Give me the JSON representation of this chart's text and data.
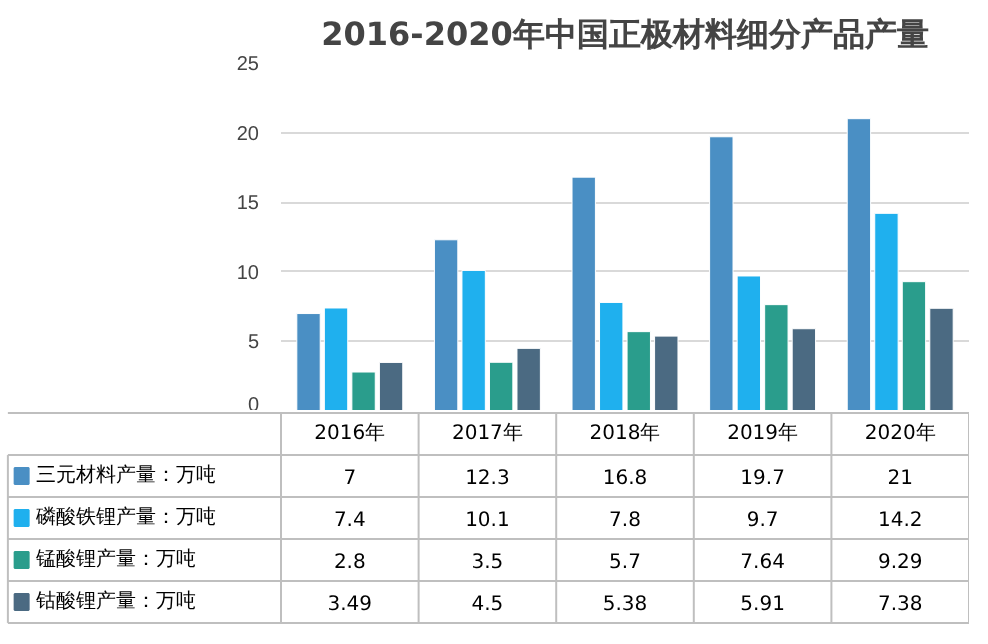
{
  "chart_data": {
    "type": "bar",
    "title": "2016-2020年中国正极材料细分产品产量",
    "categories": [
      "2016年",
      "2017年",
      "2018年",
      "2019年",
      "2020年"
    ],
    "series": [
      {
        "name": "三元材料产量：万吨",
        "color": "#4a8fc4",
        "values": [
          7,
          12.3,
          16.8,
          19.7,
          21
        ]
      },
      {
        "name": "磷酸铁锂产量：万吨",
        "color": "#1fb0ee",
        "values": [
          7.4,
          10.1,
          7.8,
          9.7,
          14.2
        ]
      },
      {
        "name": "锰酸锂产量：万吨",
        "color": "#2a9d8c",
        "values": [
          2.8,
          3.5,
          5.7,
          7.64,
          9.29
        ]
      },
      {
        "name": "钴酸锂产量：万吨",
        "color": "#4b6a82",
        "values": [
          3.49,
          4.5,
          5.38,
          5.91,
          7.38
        ]
      }
    ],
    "ylim": [
      0,
      25
    ],
    "yticks": [
      0,
      5,
      10,
      15,
      20,
      25
    ],
    "grid": "y",
    "legend": "bottom",
    "data_labels": true
  }
}
